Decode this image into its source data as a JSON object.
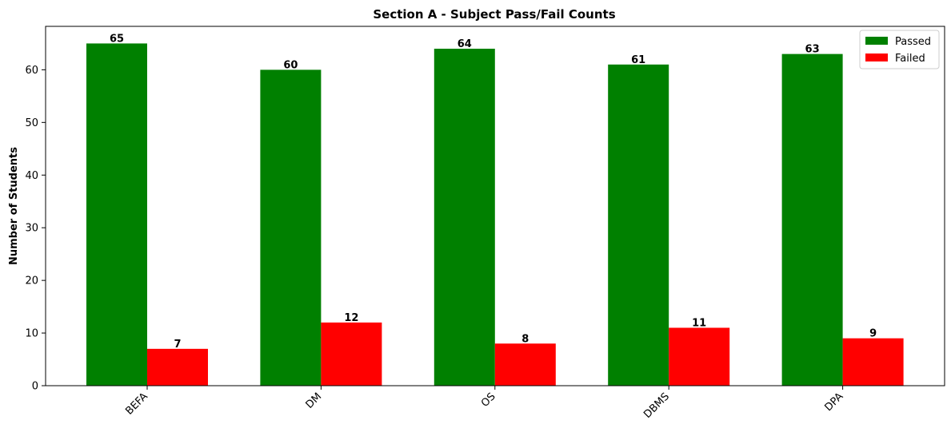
{
  "chart_data": {
    "type": "bar",
    "title": "Section A - Subject Pass/Fail Counts",
    "xlabel": "",
    "ylabel": "Number of Students",
    "categories": [
      "BEFA",
      "DM",
      "OS",
      "DBMS",
      "DPA"
    ],
    "series": [
      {
        "name": "Passed",
        "color": "#008000",
        "values": [
          65,
          60,
          64,
          61,
          63
        ]
      },
      {
        "name": "Failed",
        "color": "#ff0000",
        "values": [
          7,
          12,
          8,
          11,
          9
        ]
      }
    ],
    "ylim": [
      0,
      68.25
    ],
    "yticks": [
      0,
      10,
      20,
      30,
      40,
      50,
      60
    ],
    "grid": false,
    "legend": "top-right",
    "xtick_rotation": 45,
    "data_labels": true
  }
}
